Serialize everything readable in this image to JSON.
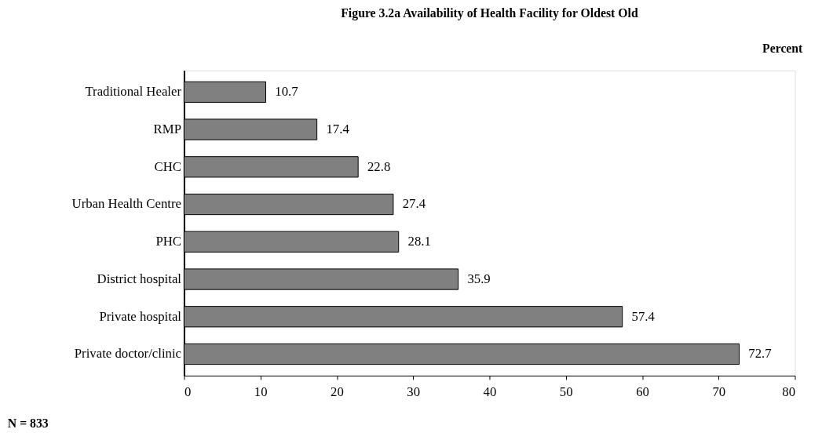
{
  "chart_data": {
    "type": "bar",
    "orientation": "horizontal",
    "title": "Figure 3.2a Availability of Health Facility for Oldest Old",
    "categories": [
      "Traditional Healer",
      "RMP",
      "CHC",
      "Urban Health Centre",
      "PHC",
      "District hospital",
      "Private hospital",
      "Private doctor/clinic"
    ],
    "values": [
      10.7,
      17.4,
      22.8,
      27.4,
      28.1,
      35.9,
      57.4,
      72.7
    ],
    "color": "#808080",
    "xlim": [
      0,
      80
    ],
    "xticks": [
      0,
      10,
      20,
      30,
      40,
      50,
      60,
      70,
      80
    ],
    "grid": false,
    "data_labels": true,
    "annotations": [
      "Percent",
      "N = 833"
    ]
  }
}
